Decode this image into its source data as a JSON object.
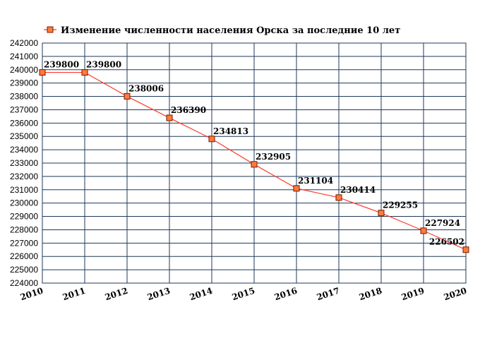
{
  "chart_data": {
    "type": "line",
    "title": "Изменение численности населения Орска за последние 10 лет",
    "x": [
      "2010",
      "2011",
      "2012",
      "2013",
      "2014",
      "2015",
      "2016",
      "2017",
      "2018",
      "2019",
      "2020"
    ],
    "series": [
      {
        "name": "Изменение численности населения Орска за последние 10 лет",
        "values": [
          239800,
          239800,
          238006,
          236390,
          234813,
          232905,
          231104,
          230414,
          229255,
          227924,
          226502
        ]
      }
    ],
    "data_labels": [
      "239800",
      "239800",
      "238006",
      "236390",
      "234813",
      "232905",
      "231104",
      "230414",
      "229255",
      "227924",
      "226502"
    ],
    "yticks": [
      "224000",
      "225000",
      "226000",
      "227000",
      "228000",
      "229000",
      "230000",
      "231000",
      "232000",
      "233000",
      "234000",
      "235000",
      "236000",
      "237000",
      "238000",
      "239000",
      "240000",
      "241000",
      "242000"
    ],
    "ylim": [
      224000,
      242000
    ],
    "grid": true,
    "legend_position": "top",
    "colors": {
      "line": "#ff3b2f",
      "marker_fill": "#ff7a3c",
      "marker_stroke": "#7a1a00",
      "grid": "#1f3a5a",
      "plot_background": "#ffffff"
    }
  }
}
